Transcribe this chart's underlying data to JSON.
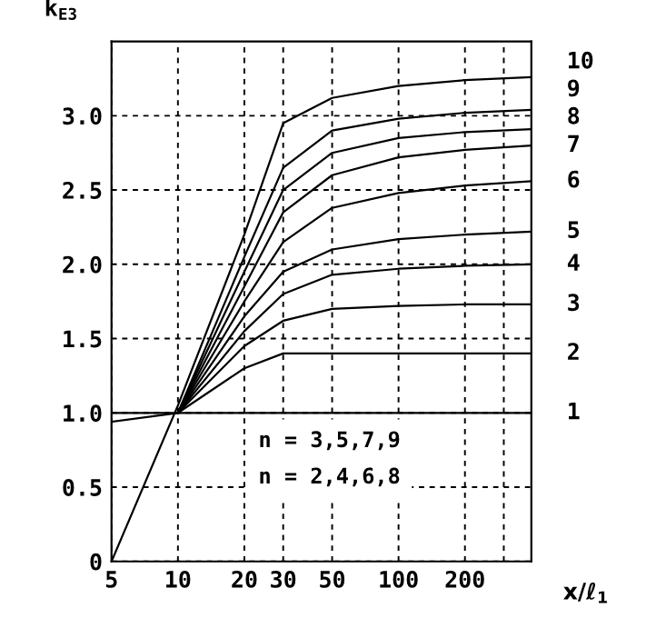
{
  "chart_data": {
    "type": "line",
    "ylabel": "k$_{E3}$",
    "xlabel": "x/ℓ$_{1}$",
    "log": "x",
    "xlim": [
      5,
      400
    ],
    "ylim": [
      0,
      3.5
    ],
    "xticks": [
      5,
      10,
      20,
      30,
      50,
      100,
      200,
      {
        "value": 300,
        "label": null
      }
    ],
    "yticks": [
      0,
      0.5,
      {
        "value": 1,
        "label": "1.0"
      },
      1.5,
      {
        "value": 2,
        "label": "2.0"
      },
      2.5,
      {
        "value": 3,
        "label": "3.0"
      }
    ],
    "grid": true,
    "line_style": "solid",
    "marker": "none",
    "x": [
      5,
      10,
      20,
      30,
      50,
      100,
      200,
      400
    ],
    "series": [
      {
        "name": "1",
        "color": "#000000",
        "values": [
          1.0,
          1.0,
          1.0,
          1.0,
          1.0,
          1.0,
          1.0,
          1.0
        ]
      },
      {
        "name": "2",
        "color": "#000000",
        "values": [
          0.94,
          1.0,
          1.3,
          1.4,
          1.4,
          1.4,
          1.4,
          1.4
        ]
      },
      {
        "name": "3",
        "color": "#000000",
        "values": [
          null,
          1.0,
          1.45,
          1.62,
          1.7,
          1.72,
          1.73,
          1.73
        ]
      },
      {
        "name": "4",
        "color": "#000000",
        "values": [
          null,
          1.0,
          1.55,
          1.8,
          1.93,
          1.97,
          1.99,
          2.0
        ]
      },
      {
        "name": "5",
        "color": "#000000",
        "values": [
          null,
          1.0,
          1.65,
          1.95,
          2.1,
          2.17,
          2.2,
          2.22
        ]
      },
      {
        "name": "6",
        "color": "#000000",
        "values": [
          null,
          1.0,
          1.75,
          2.15,
          2.38,
          2.48,
          2.53,
          2.56
        ]
      },
      {
        "name": "7",
        "color": "#000000",
        "values": [
          null,
          1.0,
          1.85,
          2.35,
          2.6,
          2.72,
          2.77,
          2.8
        ]
      },
      {
        "name": "8",
        "color": "#000000",
        "values": [
          null,
          1.0,
          1.95,
          2.5,
          2.75,
          2.85,
          2.89,
          2.91
        ]
      },
      {
        "name": "9",
        "color": "#000000",
        "values": [
          null,
          1.0,
          2.05,
          2.65,
          2.9,
          2.98,
          3.02,
          3.04
        ]
      },
      {
        "name": "10",
        "color": "#000000",
        "values": [
          0,
          1.05,
          2.2,
          2.95,
          3.12,
          3.2,
          3.24,
          3.26
        ]
      }
    ],
    "annotations": [
      "n = 3,5,7,9",
      "n = 2,4,6,8"
    ]
  }
}
